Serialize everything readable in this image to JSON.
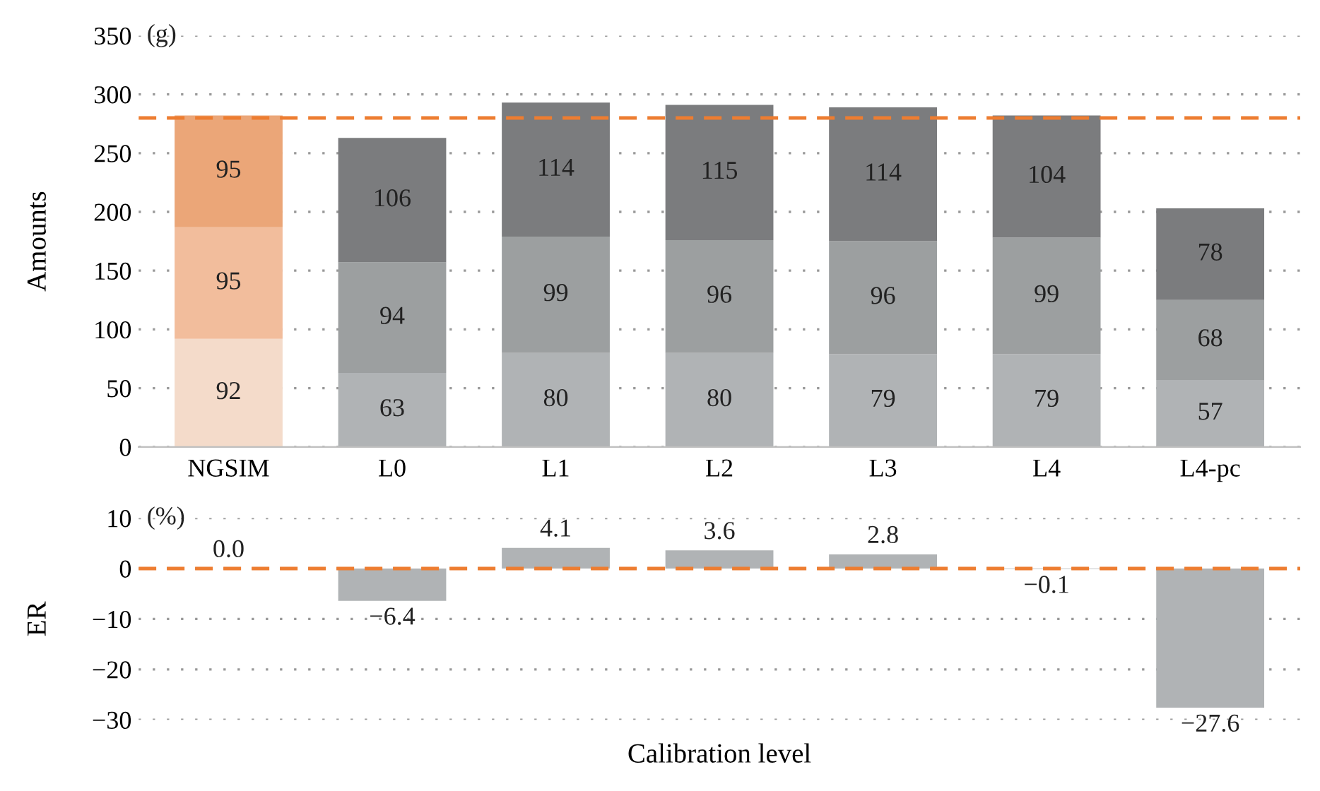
{
  "chart_data": [
    {
      "type": "bar",
      "stacked": true,
      "ylabel": "Amounts",
      "categories": [
        "NGSIM",
        "L0",
        "L1",
        "L2",
        "L3",
        "L4",
        "L4-pc"
      ],
      "series": [
        {
          "colors": [
            "#f4dbca",
            "#b0b3b5",
            "#b0b3b5",
            "#b0b3b5",
            "#b0b3b5",
            "#b0b3b5",
            "#b0b3b5"
          ],
          "values": [
            92,
            63,
            80,
            80,
            79,
            79,
            57
          ]
        },
        {
          "colors": [
            "#f2bd9c",
            "#9c9fa0",
            "#9c9fa0",
            "#9c9fa0",
            "#9c9fa0",
            "#9c9fa0",
            "#9c9fa0"
          ],
          "values": [
            95,
            94,
            99,
            96,
            96,
            99,
            68
          ]
        },
        {
          "colors": [
            "#eba678",
            "#7b7c7e",
            "#7b7c7e",
            "#7b7c7e",
            "#7b7c7e",
            "#7b7c7e",
            "#7b7c7e"
          ],
          "values": [
            95,
            106,
            114,
            115,
            114,
            104,
            78
          ]
        }
      ],
      "data_labels": true,
      "ylim": [
        0,
        350
      ],
      "yticks": [
        0,
        50,
        100,
        150,
        200,
        250,
        300,
        350
      ],
      "grid": "y",
      "annotations": [
        "(g)"
      ],
      "ref_lines": [
        {
          "axis": "y",
          "value": 280,
          "color": "#ed7d31",
          "line_style": "dashed"
        }
      ]
    },
    {
      "type": "bar",
      "ylabel": "ER",
      "xlabel": "Calibration level",
      "categories": [
        null,
        null,
        null,
        null,
        null,
        null,
        null
      ],
      "values": [
        0.0,
        -6.4,
        4.1,
        3.6,
        2.8,
        -0.1,
        -27.6
      ],
      "color": "#b0b3b5",
      "value_labels": [
        "0.0",
        "−6.4",
        "4.1",
        "3.6",
        "2.8",
        "−0.1",
        "−27.6"
      ],
      "ylim": [
        -30,
        10
      ],
      "yticks": [
        {
          "value": -30,
          "label": "−30"
        },
        {
          "value": -20,
          "label": "−20"
        },
        {
          "value": -10,
          "label": "−10"
        },
        0,
        10
      ],
      "grid": "y",
      "tick_labels": "y",
      "annotations": [
        "(%)"
      ],
      "ref_lines": [
        {
          "axis": "y",
          "value": 0,
          "color": "#ed7d31",
          "line_style": "dashed"
        }
      ]
    }
  ]
}
